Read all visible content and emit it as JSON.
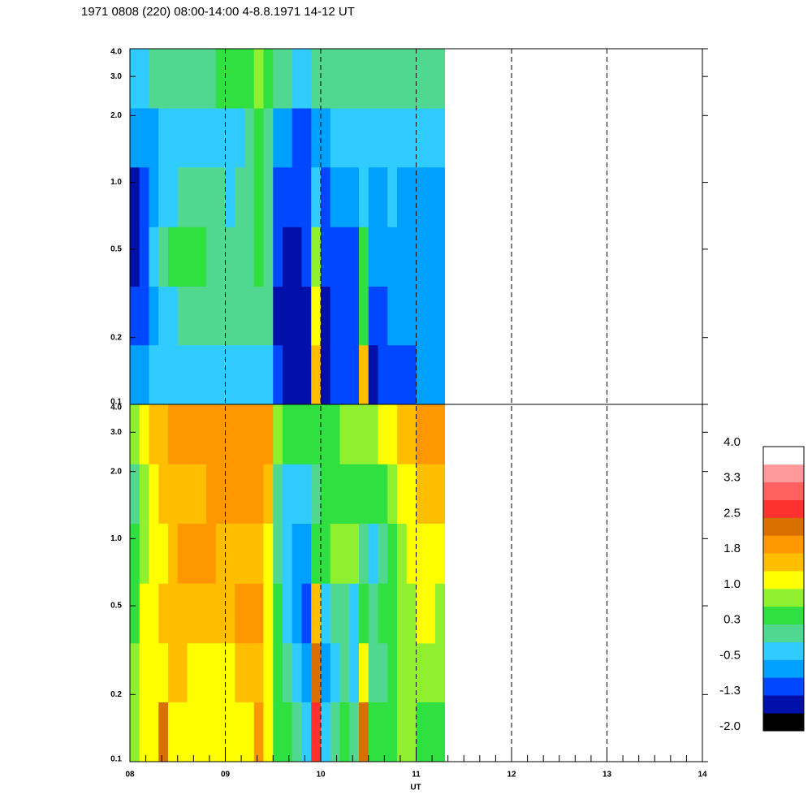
{
  "chart_data": {
    "type": "heatmap",
    "title": "1971 0808 (220) 08:00-14:00 4-8.8.1971  14-12 UT",
    "xlabel": "UT",
    "xlim": [
      8,
      14
    ],
    "xticks": [
      {
        "value": 8,
        "label": "08"
      },
      {
        "value": 9,
        "label": "09"
      },
      {
        "value": 10,
        "label": "10"
      },
      {
        "value": 11,
        "label": "11"
      },
      {
        "value": 12,
        "label": "12"
      },
      {
        "value": 13,
        "label": "13"
      },
      {
        "value": 14,
        "label": "14"
      }
    ],
    "ylim": [
      0.1,
      4
    ],
    "ylog": true,
    "yticks": [
      0.1,
      0.2,
      0.5,
      {
        "value": 1,
        "label": "1.0"
      },
      {
        "value": 2,
        "label": "2.0"
      },
      {
        "value": 3,
        "label": "3.0"
      },
      {
        "value": 4,
        "label": "4.0"
      }
    ],
    "grid": true,
    "clim": [
      -2,
      4
    ],
    "colorbar_ticks": [
      {
        "value": 4,
        "label": "4.0"
      },
      {
        "value": 3.25,
        "label": "3.3"
      },
      {
        "value": 2.5,
        "label": "2.5"
      },
      {
        "value": 1.75,
        "label": "1.8"
      },
      {
        "value": 1,
        "label": "1.0"
      },
      {
        "value": 0.25,
        "label": "0.3"
      },
      {
        "value": -0.5,
        "label": "-0.5"
      },
      {
        "value": -1.25,
        "label": "-1.3"
      },
      {
        "value": -2,
        "label": "-2.0"
      }
    ],
    "colors": [
      "#000000",
      "#0010a8",
      "#0048ff",
      "#00a0ff",
      "#30ccff",
      "#50d890",
      "#30e040",
      "#90f030",
      "#ffff00",
      "#ffbf00",
      "#ff9800",
      "#d87000",
      "#ff3030",
      "#ff6060",
      "#ff9898",
      "#ffffff"
    ],
    "x_edges": [
      8.0,
      8.1,
      8.2,
      8.3,
      8.4,
      8.5,
      8.6,
      8.7,
      8.8,
      8.9,
      9.0,
      9.1,
      9.2,
      9.3,
      9.4,
      9.5,
      9.6,
      9.7,
      9.8,
      9.9,
      10.0,
      10.1,
      10.2,
      10.3,
      10.4,
      10.5,
      10.6,
      10.7,
      10.8,
      10.9,
      11.0,
      11.1,
      11.2,
      11.3
    ],
    "y_edges": [
      0.1,
      0.185,
      0.34,
      0.63,
      1.17,
      2.16,
      4.0
    ],
    "panels": [
      {
        "z": [
          [
            -0.6,
            -1.2,
            -1.4,
            -1.3,
            -0.8,
            -0.3
          ],
          [
            -0.6,
            -1.0,
            -1.1,
            -1.0,
            -0.7,
            -0.2
          ],
          [
            -0.5,
            -0.7,
            -0.5,
            -0.8,
            -0.6,
            0.0
          ],
          [
            -0.4,
            -0.4,
            0.2,
            -0.5,
            -0.5,
            0.0
          ],
          [
            -0.4,
            -0.2,
            0.3,
            -0.2,
            -0.3,
            0.1
          ],
          [
            -0.4,
            0.0,
            0.3,
            0.0,
            -0.2,
            0.2
          ],
          [
            -0.3,
            0.1,
            0.4,
            0.1,
            -0.2,
            0.2
          ],
          [
            -0.3,
            0.1,
            0.3,
            0.0,
            -0.3,
            0.2
          ],
          [
            -0.3,
            0.0,
            0.2,
            -0.1,
            -0.3,
            0.2
          ],
          [
            -0.4,
            0.0,
            0.2,
            -0.1,
            -0.3,
            0.3
          ],
          [
            -0.4,
            0.0,
            0.1,
            -0.2,
            -0.3,
            0.3
          ],
          [
            -0.4,
            -0.1,
            0.1,
            -0.1,
            -0.2,
            0.4
          ],
          [
            -0.3,
            0.0,
            0.2,
            0.1,
            0.2,
            0.6
          ],
          [
            -0.2,
            0.1,
            0.3,
            0.3,
            0.6,
            0.8
          ],
          [
            -0.3,
            -0.1,
            0.1,
            0.0,
            0.2,
            0.5
          ],
          [
            -1.2,
            -1.3,
            -1.2,
            -1.0,
            -0.8,
            0.0
          ],
          [
            -1.5,
            -1.6,
            -1.3,
            -1.1,
            -0.8,
            -0.1
          ],
          [
            -1.6,
            -1.6,
            -1.4,
            -1.2,
            -0.9,
            -0.2
          ],
          [
            -1.4,
            -1.4,
            -1.2,
            -1.1,
            -0.9,
            -0.2
          ],
          [
            1.6,
            1.0,
            0.7,
            -0.3,
            -0.7,
            0.0
          ],
          [
            -1.3,
            -1.3,
            -1.1,
            -0.9,
            -0.6,
            0.0
          ],
          [
            -1.1,
            -1.2,
            -1.0,
            -0.8,
            -0.5,
            0.0
          ],
          [
            -1.0,
            -1.0,
            -0.9,
            -0.6,
            -0.4,
            0.1
          ],
          [
            -1.2,
            -1.1,
            -0.9,
            -0.6,
            -0.3,
            0.1
          ],
          [
            1.4,
            0.6,
            0.3,
            -0.2,
            -0.4,
            0.0
          ],
          [
            -1.3,
            -1.1,
            -0.8,
            -0.6,
            -0.4,
            0.0
          ],
          [
            -1.2,
            -1.0,
            -0.7,
            -0.6,
            -0.5,
            0.0
          ],
          [
            -1.0,
            -0.8,
            -0.6,
            -0.5,
            -0.5,
            0.0
          ],
          [
            -0.9,
            -0.7,
            -0.6,
            -0.6,
            -0.5,
            0.0
          ],
          [
            -0.9,
            -0.7,
            -0.6,
            -0.7,
            -0.5,
            0.0
          ],
          [
            -0.8,
            -0.6,
            -0.6,
            -0.7,
            -0.5,
            0.0
          ],
          [
            -0.8,
            -0.6,
            -0.6,
            -0.8,
            -0.5,
            0.0
          ],
          [
            -0.8,
            -0.6,
            -0.6,
            -0.8,
            -0.4,
            0.0
          ]
        ]
      },
      {
        "z": [
          [
            0.8,
            0.7,
            0.6,
            0.3,
            0.2,
            0.8
          ],
          [
            1.1,
            1.0,
            1.0,
            0.8,
            0.7,
            1.2
          ],
          [
            1.3,
            1.2,
            1.3,
            1.1,
            1.2,
            1.5
          ],
          [
            2.3,
            1.3,
            1.4,
            1.3,
            1.4,
            1.6
          ],
          [
            1.3,
            1.4,
            1.5,
            1.5,
            1.6,
            1.8
          ],
          [
            1.2,
            1.4,
            1.6,
            1.8,
            1.6,
            1.9
          ],
          [
            1.1,
            1.3,
            1.6,
            1.9,
            1.7,
            2.0
          ],
          [
            1.1,
            1.3,
            1.5,
            1.8,
            1.7,
            2.0
          ],
          [
            1.1,
            1.3,
            1.5,
            1.8,
            1.8,
            2.0
          ],
          [
            1.0,
            1.3,
            1.6,
            1.7,
            1.9,
            2.0
          ],
          [
            1.0,
            1.3,
            1.7,
            1.6,
            1.9,
            2.0
          ],
          [
            1.0,
            1.4,
            1.8,
            1.6,
            1.9,
            2.0
          ],
          [
            1.1,
            1.5,
            1.8,
            1.7,
            2.0,
            2.0
          ],
          [
            2.0,
            1.6,
            1.8,
            1.6,
            2.0,
            2.0
          ],
          [
            1.0,
            1.2,
            1.3,
            1.2,
            1.5,
            1.8
          ],
          [
            0.4,
            0.3,
            0.3,
            0.2,
            0.1,
            0.8
          ],
          [
            0.3,
            0.0,
            -0.3,
            -0.4,
            -0.2,
            0.6
          ],
          [
            0.1,
            -0.4,
            -0.7,
            -0.8,
            -0.5,
            0.5
          ],
          [
            -0.3,
            -0.7,
            -0.9,
            -0.8,
            -0.4,
            0.5
          ],
          [
            2.6,
            2.2,
            1.6,
            0.4,
            0.0,
            0.6
          ],
          [
            -0.2,
            -0.6,
            -0.5,
            0.5,
            0.3,
            0.6
          ],
          [
            0.2,
            -0.2,
            0.0,
            0.9,
            0.3,
            0.6
          ],
          [
            0.3,
            0.0,
            0.1,
            0.9,
            0.4,
            0.7
          ],
          [
            0.1,
            -0.3,
            -0.2,
            0.8,
            0.4,
            0.7
          ],
          [
            2.4,
            1.2,
            0.3,
            0.1,
            0.5,
            0.8
          ],
          [
            0.3,
            0.0,
            0.0,
            -0.2,
            0.4,
            0.9
          ],
          [
            0.5,
            0.2,
            0.3,
            0.2,
            0.6,
            1.0
          ],
          [
            0.6,
            0.5,
            0.5,
            0.5,
            0.8,
            1.2
          ],
          [
            0.7,
            0.7,
            0.7,
            0.7,
            1.0,
            1.4
          ],
          [
            0.7,
            0.8,
            0.9,
            1.0,
            1.3,
            1.7
          ],
          [
            0.6,
            0.8,
            1.0,
            1.1,
            1.5,
            1.9
          ],
          [
            0.5,
            0.8,
            1.0,
            1.1,
            1.6,
            1.9
          ],
          [
            0.4,
            0.7,
            0.9,
            1.0,
            1.5,
            1.8
          ]
        ]
      }
    ]
  }
}
